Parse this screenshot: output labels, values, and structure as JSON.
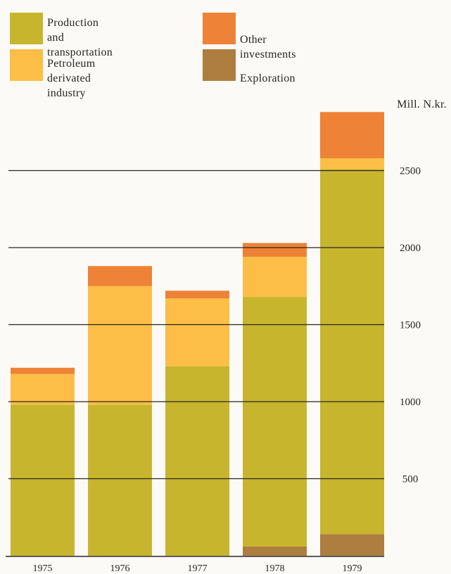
{
  "legend": [
    {
      "label": "Production and\ntransportation",
      "color": "#c8b52e",
      "icon": "legend-swatch"
    },
    {
      "label": "Petroleum\nderivated industry",
      "color": "#fcbe46",
      "icon": "legend-swatch"
    },
    {
      "label": "Other investments",
      "color": "#ee8236",
      "icon": "legend-swatch"
    },
    {
      "label": "Exploration",
      "color": "#ad7e3f",
      "icon": "legend-swatch"
    }
  ],
  "chart_data": {
    "type": "bar",
    "stacked": true,
    "categories": [
      "1975",
      "1976",
      "1977",
      "1978",
      "1979"
    ],
    "series": [
      {
        "name": "Exploration",
        "color": "#ad7e3f",
        "values": [
          0,
          0,
          0,
          60,
          140
        ]
      },
      {
        "name": "Production and transportation",
        "color": "#c8b52e",
        "values": [
          980,
          980,
          1230,
          1620,
          2370
        ]
      },
      {
        "name": "Petroleum derivated industry",
        "color": "#fcbe46",
        "values": [
          200,
          770,
          440,
          260,
          70
        ]
      },
      {
        "name": "Other investments",
        "color": "#ee8236",
        "values": [
          40,
          130,
          50,
          90,
          300
        ]
      }
    ],
    "ylabel": "Mill. N.kr.",
    "ylim": [
      0,
      2850
    ],
    "yticks": [
      500,
      1000,
      1500,
      2000,
      2500
    ],
    "grid": true
  }
}
